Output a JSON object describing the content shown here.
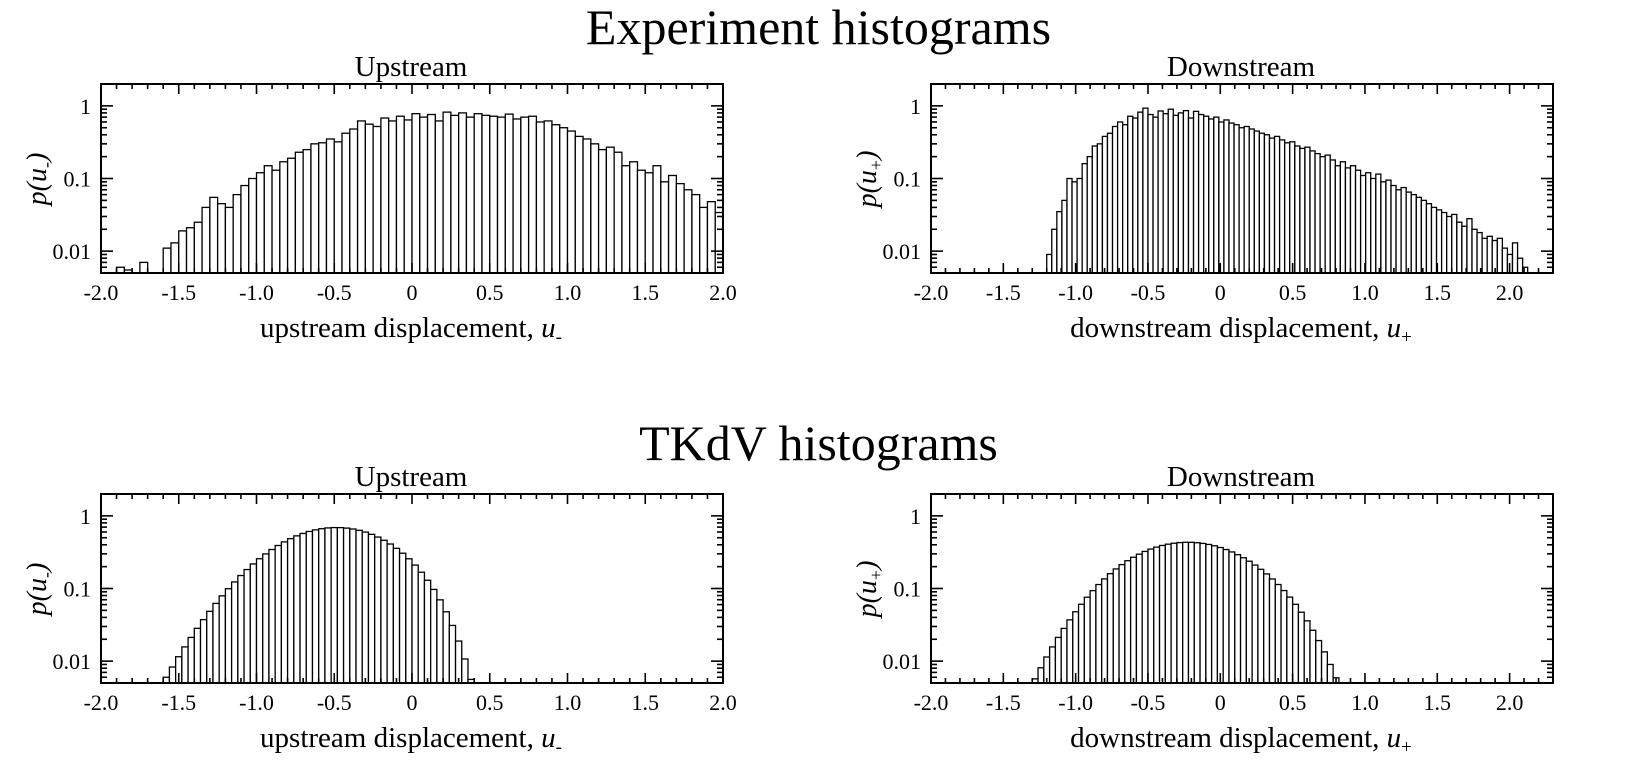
{
  "figure": {
    "title_top": "Experiment histograms",
    "title_bottom": "TKdV histograms"
  },
  "chart_data": [
    {
      "type": "bar",
      "group": "Experiment histograms",
      "title": "Upstream",
      "xlabel_text": "upstream displacement, ",
      "xlabel_var": "u",
      "xlabel_sub": "-",
      "ylabel_func": "p(",
      "ylabel_var": "u",
      "ylabel_sub": "-",
      "ylabel_close": ")",
      "xlim": [
        -2.0,
        2.0
      ],
      "ylim": [
        0.005,
        2
      ],
      "yscale": "log",
      "xticks": [
        "-2.0",
        "-1.5",
        "-1.0",
        "-0.5",
        "0",
        "0.5",
        "1.0",
        "1.5",
        "2.0"
      ],
      "xtick_values": [
        -2.0,
        -1.5,
        -1.0,
        -0.5,
        0,
        0.5,
        1.0,
        1.5,
        2.0
      ],
      "yticks": [
        "0.01",
        "0.1",
        "1"
      ],
      "ytick_values": [
        0.01,
        0.1,
        1
      ],
      "bin_start": -2.0,
      "bin_width": 0.05,
      "values": [
        0,
        0,
        0.006,
        0.0055,
        0,
        0.007,
        0,
        0,
        0.011,
        0.013,
        0.019,
        0.021,
        0.025,
        0.04,
        0.055,
        0.045,
        0.04,
        0.06,
        0.08,
        0.1,
        0.12,
        0.15,
        0.13,
        0.17,
        0.19,
        0.23,
        0.25,
        0.3,
        0.31,
        0.35,
        0.32,
        0.42,
        0.48,
        0.62,
        0.56,
        0.52,
        0.68,
        0.62,
        0.72,
        0.64,
        0.78,
        0.7,
        0.76,
        0.62,
        0.82,
        0.74,
        0.8,
        0.7,
        0.78,
        0.74,
        0.72,
        0.7,
        0.77,
        0.66,
        0.7,
        0.72,
        0.6,
        0.62,
        0.55,
        0.5,
        0.45,
        0.38,
        0.35,
        0.3,
        0.25,
        0.27,
        0.23,
        0.15,
        0.17,
        0.13,
        0.12,
        0.15,
        0.09,
        0.11,
        0.085,
        0.07,
        0.06,
        0.04,
        0.048,
        0.034,
        0.04,
        0.028,
        0.02,
        0.017,
        0.023,
        0.014,
        0.012,
        0.016,
        0,
        0,
        0,
        0,
        0,
        0,
        0,
        0,
        0,
        0,
        0,
        0
      ]
    },
    {
      "type": "bar",
      "group": "Experiment histograms",
      "title": "Downstream",
      "xlabel_text": "downstream displacement, ",
      "xlabel_var": "u",
      "xlabel_sub": "+",
      "ylabel_func": "p(",
      "ylabel_var": "u",
      "ylabel_sub": "+",
      "ylabel_close": ")",
      "xlim": [
        -2.0,
        2.3
      ],
      "ylim": [
        0.005,
        2
      ],
      "yscale": "log",
      "xticks": [
        "-2.0",
        "-1.5",
        "-1.0",
        "-0.5",
        "0",
        "0.5",
        "1.0",
        "1.5",
        "2.0"
      ],
      "xtick_values": [
        -2.0,
        -1.5,
        -1.0,
        -0.5,
        0,
        0.5,
        1.0,
        1.5,
        2.0
      ],
      "yticks": [
        "0.01",
        "0.1",
        "1"
      ],
      "ytick_values": [
        0.01,
        0.1,
        1
      ],
      "bin_start": -1.2,
      "bin_width": 0.035,
      "values": [
        0.009,
        0.02,
        0.035,
        0.05,
        0.1,
        0.09,
        0.1,
        0.16,
        0.2,
        0.28,
        0.3,
        0.38,
        0.42,
        0.52,
        0.6,
        0.55,
        0.72,
        0.68,
        0.82,
        0.93,
        0.76,
        0.7,
        0.85,
        0.78,
        0.9,
        0.74,
        0.8,
        0.86,
        0.68,
        0.84,
        0.76,
        0.72,
        0.66,
        0.7,
        0.6,
        0.64,
        0.58,
        0.55,
        0.5,
        0.52,
        0.48,
        0.45,
        0.42,
        0.4,
        0.36,
        0.38,
        0.34,
        0.31,
        0.32,
        0.28,
        0.26,
        0.27,
        0.24,
        0.22,
        0.2,
        0.21,
        0.18,
        0.15,
        0.17,
        0.14,
        0.15,
        0.13,
        0.11,
        0.12,
        0.1,
        0.115,
        0.09,
        0.095,
        0.08,
        0.07,
        0.075,
        0.065,
        0.06,
        0.055,
        0.05,
        0.045,
        0.04,
        0.037,
        0.034,
        0.03,
        0.032,
        0.025,
        0.022,
        0.028,
        0.02,
        0.018,
        0.015,
        0.016,
        0.014,
        0.015,
        0.011,
        0.009,
        0.013,
        0.008,
        0.006
      ]
    },
    {
      "type": "bar",
      "group": "TKdV histograms",
      "title": "Upstream",
      "xlabel_text": "upstream displacement, ",
      "xlabel_var": "u",
      "xlabel_sub": "-",
      "ylabel_func": "p(",
      "ylabel_var": "u",
      "ylabel_sub": "-",
      "ylabel_close": ")",
      "xlim": [
        -2.0,
        2.0
      ],
      "ylim": [
        0.005,
        2
      ],
      "yscale": "log",
      "xticks": [
        "-2.0",
        "-1.5",
        "-1.0",
        "-0.5",
        "0",
        "0.5",
        "1.0",
        "1.5",
        "2.0"
      ],
      "xtick_values": [
        -2.0,
        -1.5,
        -1.0,
        -0.5,
        0,
        0.5,
        1.0,
        1.5,
        2.0
      ],
      "yticks": [
        "0.01",
        "0.1",
        "1"
      ],
      "ytick_values": [
        0.01,
        0.1,
        1
      ],
      "bin_start": -1.6,
      "bin_width": 0.04,
      "values": [
        0.006,
        0.0083,
        0.0115,
        0.0157,
        0.0212,
        0.0283,
        0.0373,
        0.0485,
        0.0624,
        0.0792,
        0.0994,
        0.1232,
        0.1508,
        0.1823,
        0.2177,
        0.2568,
        0.2991,
        0.3441,
        0.3908,
        0.4383,
        0.4854,
        0.5306,
        0.5726,
        0.61,
        0.6415,
        0.6658,
        0.6822,
        0.69,
        0.6887,
        0.6785,
        0.6595,
        0.6322,
        0.5976,
        0.5567,
        0.5108,
        0.4613,
        0.4097,
        0.3575,
        0.306,
        0.2565,
        0.2101,
        0.1676,
        0.1298,
        0.0971,
        0.0698,
        0.0478,
        0.031,
        0.0189,
        0.0107,
        0.0056
      ]
    },
    {
      "type": "bar",
      "group": "TKdV histograms",
      "title": "Downstream",
      "xlabel_text": "downstream displacement, ",
      "xlabel_var": "u",
      "xlabel_sub": "+",
      "ylabel_func": "p(",
      "ylabel_var": "u",
      "ylabel_sub": "+",
      "ylabel_close": ")",
      "xlim": [
        -2.0,
        2.3
      ],
      "ylim": [
        0.005,
        2
      ],
      "yscale": "log",
      "xticks": [
        "-2.0",
        "-1.5",
        "-1.0",
        "-0.5",
        "0",
        "0.5",
        "1.0",
        "1.5",
        "2.0"
      ],
      "xtick_values": [
        -2.0,
        -1.5,
        -1.0,
        -0.5,
        0,
        0.5,
        1.0,
        1.5,
        2.0
      ],
      "yticks": [
        "0.01",
        "0.1",
        "1"
      ],
      "ytick_values": [
        0.01,
        0.1,
        1
      ],
      "bin_start": -1.3,
      "bin_width": 0.04,
      "values": [
        0.0057,
        0.0081,
        0.0114,
        0.0157,
        0.0212,
        0.0282,
        0.037,
        0.0478,
        0.0607,
        0.0759,
        0.0935,
        0.1134,
        0.1356,
        0.1599,
        0.1859,
        0.2132,
        0.2412,
        0.2694,
        0.2972,
        0.3239,
        0.3488,
        0.3714,
        0.3912,
        0.4075,
        0.42,
        0.4284,
        0.4324,
        0.4318,
        0.4268,
        0.4174,
        0.404,
        0.3869,
        0.3667,
        0.3437,
        0.3187,
        0.2922,
        0.2649,
        0.2373,
        0.2101,
        0.1838,
        0.1587,
        0.1352,
        0.1135,
        0.0937,
        0.0761,
        0.0606,
        0.0472,
        0.0359,
        0.0266,
        0.0192,
        0.0134,
        0.009,
        0.0059
      ]
    }
  ]
}
